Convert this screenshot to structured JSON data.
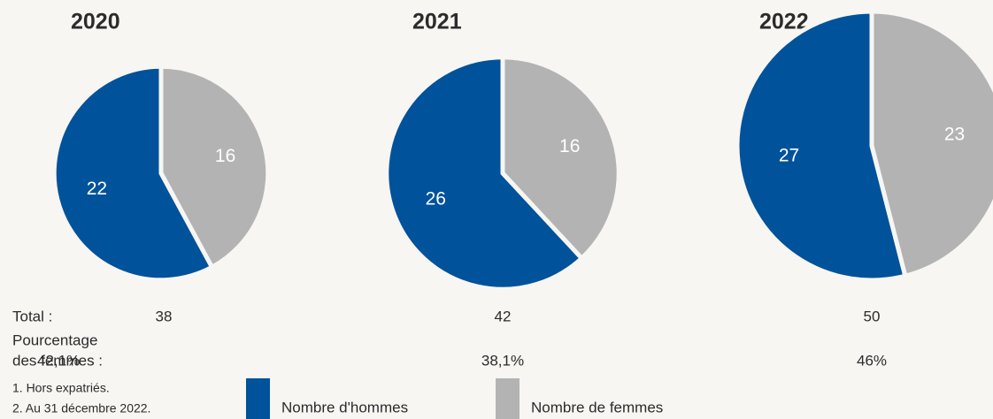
{
  "chart_data": [
    {
      "type": "pie",
      "title": "2020",
      "categories": [
        "Nombre d'hommes",
        "Nombre de femmes"
      ],
      "values": [
        22,
        16
      ],
      "colors": [
        "#00529b",
        "#b3b3b3"
      ],
      "total": 38,
      "women_share": "42,1%"
    },
    {
      "type": "pie",
      "title": "2021",
      "categories": [
        "Nombre d'hommes",
        "Nombre de femmes"
      ],
      "values": [
        26,
        16
      ],
      "colors": [
        "#00529b",
        "#b3b3b3"
      ],
      "total": 42,
      "women_share": "38,1%"
    },
    {
      "type": "pie",
      "title": "2022",
      "categories": [
        "Nombre d'hommes",
        "Nombre de femmes"
      ],
      "values": [
        27,
        23
      ],
      "colors": [
        "#00529b",
        "#b3b3b3"
      ],
      "total": 50,
      "women_share": "46%"
    }
  ],
  "row_labels": {
    "total": "Total :",
    "women_share": [
      "Pourcentage",
      "des femmes :"
    ]
  },
  "footnotes": [
    "1. Hors expatriés.",
    "2. Au 31 décembre 2022."
  ]
}
